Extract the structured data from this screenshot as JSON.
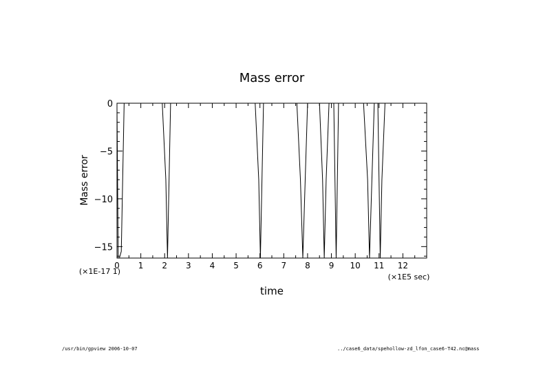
{
  "chart_data": {
    "type": "line",
    "title": "Mass error",
    "xlabel": "time",
    "ylabel": "Mass error",
    "x_scale_label": "(×1E5 sec)",
    "y_scale_label": "(×1E-17 1)",
    "xlim": [
      0,
      13
    ],
    "ylim": [
      -16.2,
      0
    ],
    "x_ticks": [
      0,
      1,
      2,
      3,
      4,
      5,
      6,
      7,
      8,
      9,
      10,
      11,
      12
    ],
    "y_ticks": [
      0,
      -5,
      -10,
      -15
    ],
    "grid": false,
    "series": [
      {
        "x": [
          0,
          0.05,
          0.1,
          0.18,
          0.3,
          0.42,
          0.6,
          1.9,
          2.05,
          2.12,
          2.25,
          2.4,
          5.8,
          5.95,
          6.02,
          6.15,
          6.35,
          7.55,
          7.7,
          7.8,
          7.9,
          8.0,
          8.15,
          8.5,
          8.63,
          8.7,
          8.78,
          8.9,
          9.1,
          9.2,
          9.3,
          9.45,
          10.35,
          10.52,
          10.6,
          10.7,
          10.8,
          10.95,
          11.05,
          11.12,
          11.25,
          11.5,
          12.9
        ],
        "y": [
          -0.5,
          -16.2,
          -16.2,
          -15.5,
          0,
          0,
          0,
          0,
          -8,
          -16.2,
          0,
          0,
          0,
          -8,
          -16.2,
          0,
          0,
          0,
          -8,
          -16.2,
          -8,
          0,
          0,
          0,
          -8,
          -16.2,
          -8,
          0,
          0,
          -16.2,
          0,
          0,
          0,
          -8,
          -16.2,
          -8,
          0,
          0,
          -16.2,
          -8,
          0,
          0,
          0
        ]
      }
    ]
  },
  "footer": {
    "left": "/usr/bin/gpview  2006-10-07",
    "right": "../case6_data/spehollow-zd_lfon_case6-T42.nc@mass"
  }
}
